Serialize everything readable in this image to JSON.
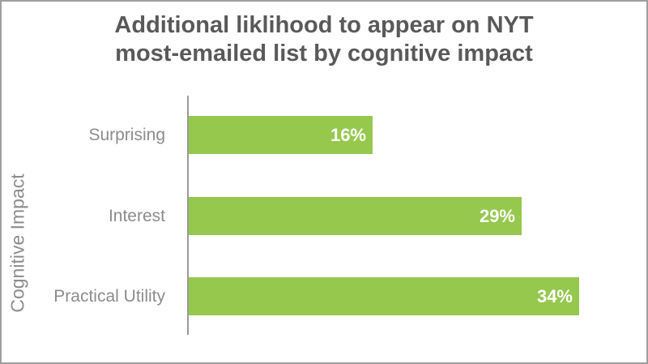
{
  "chart_data": {
    "type": "bar",
    "orientation": "horizontal",
    "title": "Additional liklihood to appear on NYT most-emailed list by cognitive impact",
    "title_lines": [
      "Additional liklihood to appear on NYT",
      "most-emailed list by cognitive impact"
    ],
    "ylabel": "Cognitive Impact",
    "xlabel": "",
    "categories": [
      "Surprising",
      "Interest",
      "Practical Utility"
    ],
    "values": [
      16,
      29,
      34
    ],
    "value_labels": [
      "16%",
      "29%",
      "34%"
    ],
    "xlim": [
      0,
      40
    ],
    "grid": false,
    "legend": false,
    "value_label_position": "inside-end",
    "colors": {
      "bar": "#96c84e",
      "title": "#595959",
      "category_label": "#8c8c8c",
      "value_label": "#ffffff",
      "axis_line": "#9a9a9a",
      "frame_border": "#a0a0a0",
      "background": "#ffffff"
    }
  }
}
